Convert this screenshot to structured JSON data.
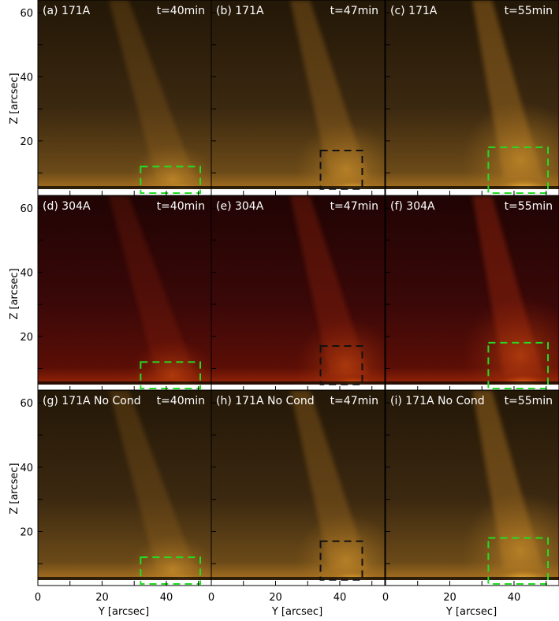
{
  "figure": {
    "x_axis_label": "Y [arcsec]",
    "y_axis_label": "Z [arcsec]",
    "x_ticks": [
      "0",
      "20",
      "40"
    ],
    "y_ticks": [
      "60",
      "40",
      "20"
    ],
    "ranges": {
      "x": [
        0,
        54
      ],
      "y": [
        2,
        62
      ]
    },
    "colormaps": {
      "171": [
        "#231707",
        "#3b2810",
        "#6b4a18",
        "#a87120",
        "#e0a030",
        "#ffd070",
        "#ffffff"
      ],
      "304": [
        "#200404",
        "#3a0808",
        "#5a0e06",
        "#9a2608",
        "#d85410",
        "#ffb040",
        "#ffffff"
      ]
    },
    "box_colors": {
      "green": "#22dd22",
      "black": "#111111"
    }
  },
  "panels": [
    {
      "label": "(a) 171A",
      "time": "t=40min",
      "row": 0,
      "col": 0,
      "cmap": "171",
      "box_color": "green",
      "box": [
        32,
        54,
        2,
        12
      ]
    },
    {
      "label": "(b) 171A",
      "time": "t=47min",
      "row": 0,
      "col": 1,
      "cmap": "171",
      "box_color": "black",
      "box": [
        34,
        47,
        5,
        17
      ]
    },
    {
      "label": "(c) 171A",
      "time": "t=55min",
      "row": 0,
      "col": 2,
      "cmap": "171",
      "box_color": "green",
      "box": [
        32,
        54,
        2,
        18
      ]
    },
    {
      "label": "(d) 304A",
      "time": "t=40min",
      "row": 1,
      "col": 0,
      "cmap": "304",
      "box_color": "green",
      "box": [
        32,
        54,
        2,
        12
      ]
    },
    {
      "label": "(e) 304A",
      "time": "t=47min",
      "row": 1,
      "col": 1,
      "cmap": "304",
      "box_color": "black",
      "box": [
        34,
        47,
        5,
        17
      ]
    },
    {
      "label": "(f) 304A",
      "time": "t=55min",
      "row": 1,
      "col": 2,
      "cmap": "304",
      "box_color": "green",
      "box": [
        32,
        54,
        2,
        18
      ]
    },
    {
      "label": "(g) 171A No Cond",
      "time": "t=40min",
      "row": 2,
      "col": 0,
      "cmap": "171",
      "box_color": "green",
      "box": [
        32,
        54,
        2,
        12
      ]
    },
    {
      "label": "(h) 171A No Cond",
      "time": "t=47min",
      "row": 2,
      "col": 1,
      "cmap": "171",
      "box_color": "black",
      "box": [
        34,
        47,
        5,
        17
      ]
    },
    {
      "label": "(i) 171A No Cond",
      "time": "t=55min",
      "row": 2,
      "col": 2,
      "cmap": "171",
      "box_color": "green",
      "box": [
        32,
        54,
        2,
        18
      ]
    }
  ]
}
